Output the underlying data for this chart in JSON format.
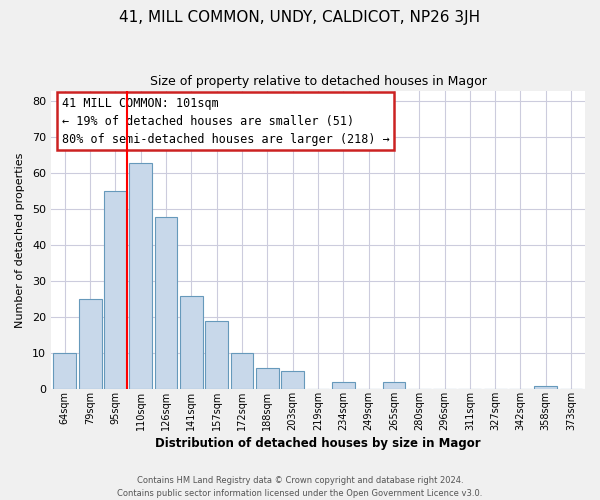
{
  "title": "41, MILL COMMON, UNDY, CALDICOT, NP26 3JH",
  "subtitle": "Size of property relative to detached houses in Magor",
  "xlabel": "Distribution of detached houses by size in Magor",
  "ylabel": "Number of detached properties",
  "bar_labels": [
    "64sqm",
    "79sqm",
    "95sqm",
    "110sqm",
    "126sqm",
    "141sqm",
    "157sqm",
    "172sqm",
    "188sqm",
    "203sqm",
    "219sqm",
    "234sqm",
    "249sqm",
    "265sqm",
    "280sqm",
    "296sqm",
    "311sqm",
    "327sqm",
    "342sqm",
    "358sqm",
    "373sqm"
  ],
  "bar_values": [
    10,
    25,
    55,
    63,
    48,
    26,
    19,
    10,
    6,
    5,
    0,
    2,
    0,
    2,
    0,
    0,
    0,
    0,
    0,
    1,
    0
  ],
  "bar_color": "#c8d8ea",
  "bar_edge_color": "#6699bb",
  "ylim": [
    0,
    83
  ],
  "yticks": [
    0,
    10,
    20,
    30,
    40,
    50,
    60,
    70,
    80
  ],
  "red_line_index": 2,
  "annotation_title": "41 MILL COMMON: 101sqm",
  "annotation_line1": "← 19% of detached houses are smaller (51)",
  "annotation_line2": "80% of semi-detached houses are larger (218) →",
  "footer_line1": "Contains HM Land Registry data © Crown copyright and database right 2024.",
  "footer_line2": "Contains public sector information licensed under the Open Government Licence v3.0.",
  "background_color": "#f0f0f0",
  "plot_bg_color": "#ffffff",
  "grid_color": "#ccccdd"
}
